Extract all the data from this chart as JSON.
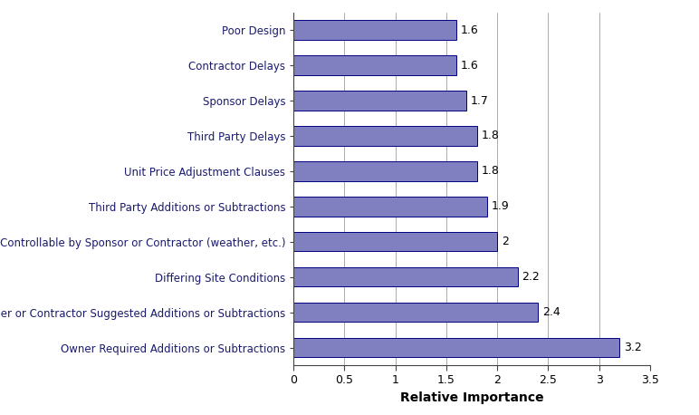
{
  "categories": [
    "Owner Required Additions or Subtractions",
    "Design-Builder or Contractor Suggested Additions or Subtractions",
    "Differing Site Conditions",
    "Events Not Controllable by Sponsor or Contractor (weather, etc.)",
    "Third Party Additions or Subtractions",
    "Unit Price Adjustment Clauses",
    "Third Party Delays",
    "Sponsor Delays",
    "Contractor Delays",
    "Poor Design"
  ],
  "values": [
    3.2,
    2.4,
    2.2,
    2.0,
    1.9,
    1.8,
    1.8,
    1.7,
    1.6,
    1.6
  ],
  "bar_color": "#8080c0",
  "bar_edgecolor": "#000080",
  "xlabel": "Relative Importance",
  "xlim": [
    0,
    3.5
  ],
  "xticks": [
    0,
    0.5,
    1,
    1.5,
    2,
    2.5,
    3,
    3.5
  ],
  "xtick_labels": [
    "0",
    "0.5",
    "1",
    "1.5",
    "2",
    "2.5",
    "3",
    "3.5"
  ],
  "label_color": "#1a1a6e",
  "bar_height": 0.55,
  "value_label_fontsize": 9,
  "axis_label_fontsize": 10,
  "tick_label_fontsize": 9,
  "category_fontsize": 8.5
}
